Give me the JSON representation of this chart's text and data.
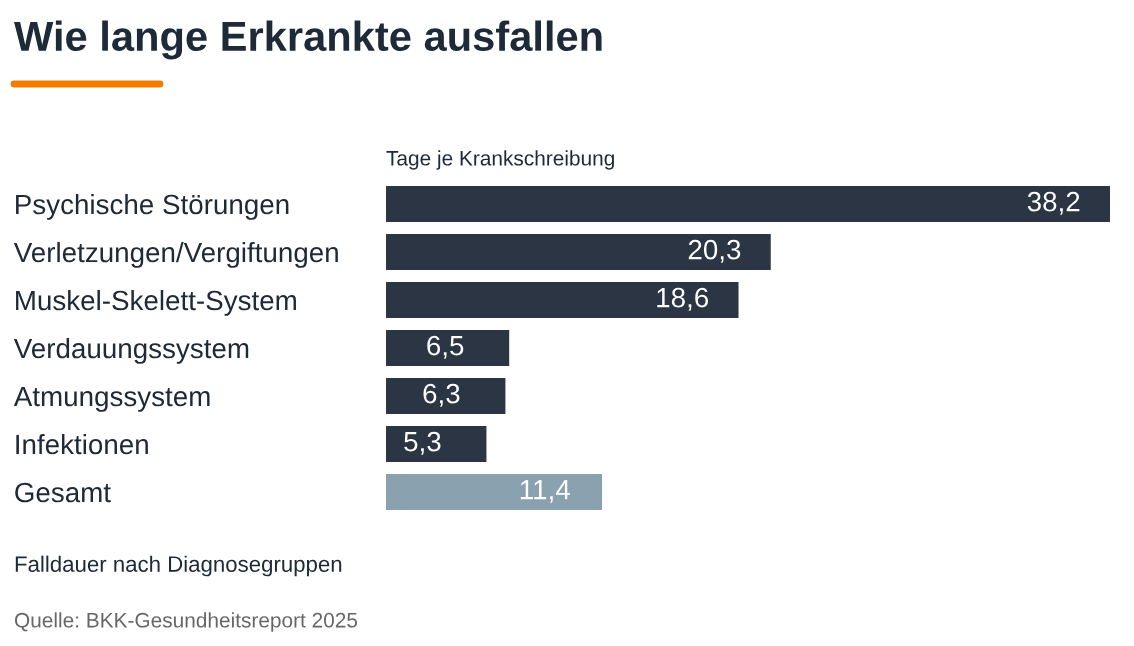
{
  "chart_data": {
    "type": "bar",
    "orientation": "horizontal",
    "title": "Wie lange Erkrankte ausfallen",
    "xlabel": "Tage je Krankschreibung",
    "categories": [
      "Psychische Störungen",
      "Verletzungen/Vergiftungen",
      "Muskel-Skelett-System",
      "Verdauungssystem",
      "Atmungssystem",
      "Infektionen",
      "Gesamt"
    ],
    "values": [
      38.2,
      20.3,
      18.6,
      6.5,
      6.3,
      5.3,
      11.4
    ],
    "value_labels": [
      "38,2",
      "20,3",
      "18,6",
      "6,5",
      "6,3",
      "5,3",
      "11,4"
    ],
    "colors": [
      "#2b3544",
      "#2b3544",
      "#2b3544",
      "#2b3544",
      "#2b3544",
      "#2b3544",
      "#8aa1b0"
    ],
    "annotations": [
      "Falldauer nach Diagnosegruppen",
      "Quelle: BKK-Gesundheitsreport 2025"
    ]
  }
}
